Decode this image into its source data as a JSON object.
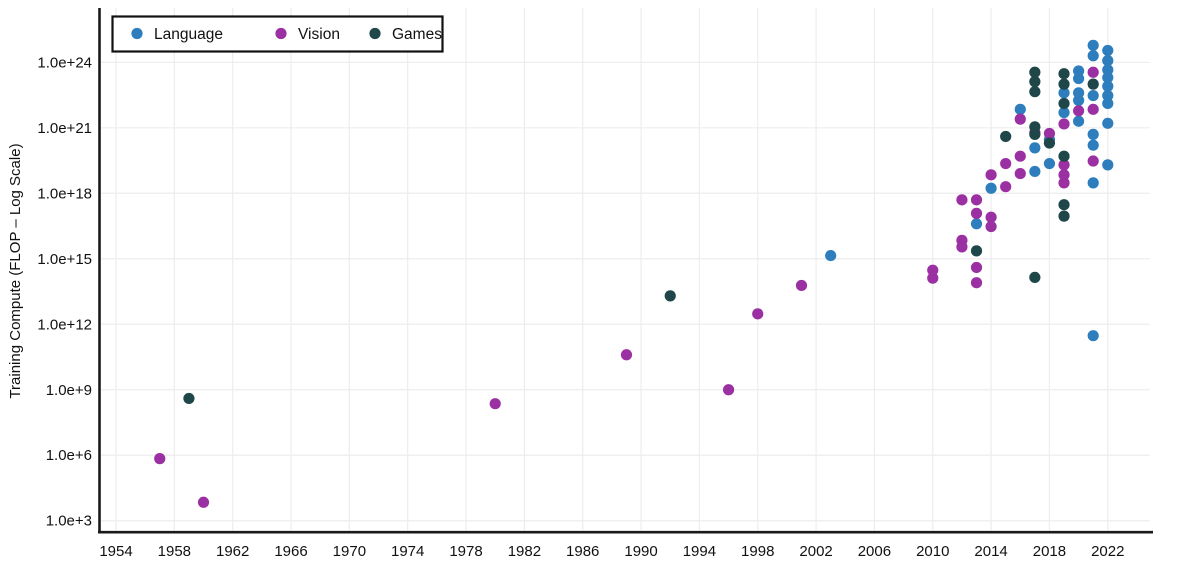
{
  "chart_data": {
    "type": "scatter",
    "title": "",
    "xlabel": "",
    "ylabel": "Training Compute (FLOP – Log Scale)",
    "grid": true,
    "background": "#ffffff",
    "gridline_color": "#ededed",
    "axis_color": "#1a1a1a",
    "legend": {
      "position": "top-left",
      "entries": [
        "Language",
        "Vision",
        "Games"
      ]
    },
    "x_axis": {
      "ticks": [
        1954,
        1958,
        1962,
        1966,
        1970,
        1974,
        1978,
        1982,
        1986,
        1990,
        1994,
        1998,
        2002,
        2006,
        2010,
        2014,
        2018,
        2022
      ],
      "range": [
        1952.8,
        2024.9
      ]
    },
    "y_axis": {
      "tick_labels": [
        "1.0e+24",
        "1.0e+21",
        "1.0e+18",
        "1.0e+15",
        "1.0e+12",
        "1.0e+9",
        "1.0e+6",
        "1.0e+3"
      ],
      "tick_exponents": [
        24,
        21,
        18,
        15,
        12,
        9,
        6,
        3
      ],
      "scale": "log",
      "range_exponents": [
        2.5,
        25.0
      ]
    },
    "series": [
      {
        "name": "Language",
        "color": "#2e7ebd",
        "points": [
          [
            2003,
            1400000000000000.0
          ],
          [
            2013,
            4e+16
          ],
          [
            2014,
            1.7e+18
          ],
          [
            2016,
            7e+21
          ],
          [
            2017,
            1.2e+20
          ],
          [
            2017,
            1e+19
          ],
          [
            2018,
            2.9e+20
          ],
          [
            2018,
            2.3e+19
          ],
          [
            2019,
            4e+22
          ],
          [
            2019,
            5e+21
          ],
          [
            2020,
            4e+23
          ],
          [
            2020,
            1.8e+23
          ],
          [
            2020,
            4e+22
          ],
          [
            2020,
            1.8e+22
          ],
          [
            2020,
            2e+21
          ],
          [
            2021,
            6e+24
          ],
          [
            2021,
            2e+24
          ],
          [
            2021,
            3e+22
          ],
          [
            2021,
            5e+20
          ],
          [
            2021,
            1.6e+20
          ],
          [
            2021,
            3e+18
          ],
          [
            2021,
            300000000000.0
          ],
          [
            2022,
            3.5e+24
          ],
          [
            2022,
            1.2e+24
          ],
          [
            2022,
            4.5e+23
          ],
          [
            2022,
            2e+23
          ],
          [
            2022,
            8e+22
          ],
          [
            2022,
            3e+22
          ],
          [
            2022,
            1.3e+22
          ],
          [
            2022,
            1.6e+21
          ],
          [
            2022,
            2e+19
          ]
        ]
      },
      {
        "name": "Vision",
        "color": "#9b30a3",
        "points": [
          [
            1957,
            700000.0
          ],
          [
            1960,
            7000.0
          ],
          [
            1980,
            230000000.0
          ],
          [
            1989,
            40000000000.0
          ],
          [
            1996,
            1000000000.0
          ],
          [
            1998,
            3000000000000.0
          ],
          [
            2001,
            60000000000000.0
          ],
          [
            2010,
            300000000000000.0
          ],
          [
            2010,
            130000000000000.0
          ],
          [
            2012,
            5e+17
          ],
          [
            2012,
            7000000000000000.0
          ],
          [
            2012,
            3500000000000000.0
          ],
          [
            2013,
            5e+17
          ],
          [
            2013,
            1.2e+17
          ],
          [
            2013,
            400000000000000.0
          ],
          [
            2013,
            80000000000000.0
          ],
          [
            2014,
            7e+18
          ],
          [
            2014,
            8e+16
          ],
          [
            2014,
            3e+16
          ],
          [
            2015,
            2.3e+19
          ],
          [
            2015,
            2e+18
          ],
          [
            2016,
            2.5e+21
          ],
          [
            2016,
            5e+19
          ],
          [
            2016,
            8e+18
          ],
          [
            2017,
            6e+20
          ],
          [
            2018,
            5.5e+20
          ],
          [
            2019,
            1.5e+21
          ],
          [
            2019,
            2e+19
          ],
          [
            2019,
            7e+18
          ],
          [
            2019,
            3e+18
          ],
          [
            2020,
            6e+21
          ],
          [
            2021,
            3.5e+23
          ],
          [
            2021,
            7e+21
          ],
          [
            2021,
            3e+19
          ]
        ]
      },
      {
        "name": "Games",
        "color": "#1f4749",
        "points": [
          [
            1959,
            400000000.0
          ],
          [
            1992,
            20000000000000.0
          ],
          [
            2013,
            2300000000000000.0
          ],
          [
            2015,
            4e+20
          ],
          [
            2017,
            3.5e+23
          ],
          [
            2017,
            1.3e+23
          ],
          [
            2017,
            4.5e+22
          ],
          [
            2017,
            1.1e+21
          ],
          [
            2017,
            5e+20
          ],
          [
            2017,
            140000000000000.0
          ],
          [
            2018,
            2e+20
          ],
          [
            2019,
            3e+23
          ],
          [
            2019,
            1e+23
          ],
          [
            2019,
            1.3e+22
          ],
          [
            2019,
            5e+19
          ],
          [
            2019,
            3e+17
          ],
          [
            2019,
            9e+16
          ],
          [
            2021,
            1e+23
          ]
        ]
      }
    ]
  }
}
